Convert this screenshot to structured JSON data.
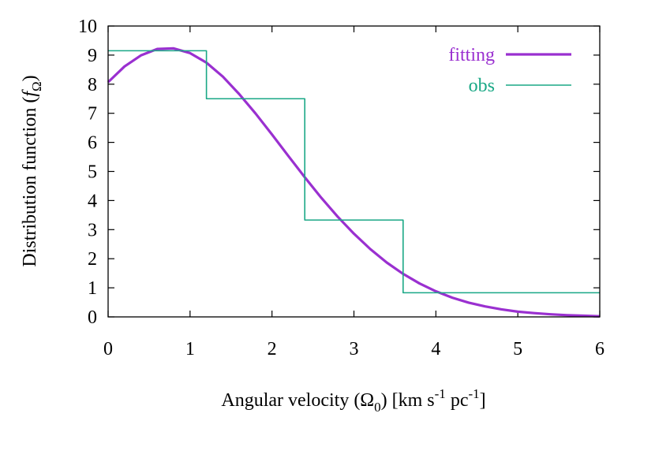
{
  "chart_data": {
    "type": "line",
    "xlabel": {
      "prefix": "Angular velocity (Ω",
      "sub": "0",
      "middle": ") [km s",
      "sup1": "-1",
      "middle2": " pc",
      "sup2": "-1",
      "suffix": "]"
    },
    "ylabel": {
      "prefix": "Distribution function (",
      "italic": "f",
      "sub": "Ω",
      "suffix": ")"
    },
    "xlim": [
      0,
      6
    ],
    "ylim": [
      0,
      10
    ],
    "xticks": [
      0,
      1,
      2,
      3,
      4,
      5,
      6
    ],
    "yticks": [
      0,
      1,
      2,
      3,
      4,
      5,
      6,
      7,
      8,
      9,
      10
    ],
    "grid": false,
    "legend_position": "top-right",
    "series": [
      {
        "name": "fitting",
        "kind": "curve",
        "color": "#9a30d0",
        "x": [
          0,
          0.2,
          0.4,
          0.6,
          0.8,
          1.0,
          1.2,
          1.4,
          1.6,
          1.8,
          2.0,
          2.2,
          2.4,
          2.6,
          2.8,
          3.0,
          3.2,
          3.4,
          3.6,
          3.8,
          4.0,
          4.2,
          4.4,
          4.6,
          4.8,
          5.0,
          5.2,
          5.4,
          5.6,
          5.8,
          6.0
        ],
        "y": [
          8.07,
          8.61,
          8.99,
          9.21,
          9.23,
          9.07,
          8.74,
          8.26,
          7.66,
          6.99,
          6.27,
          5.53,
          4.8,
          4.1,
          3.45,
          2.86,
          2.33,
          1.87,
          1.48,
          1.15,
          0.88,
          0.66,
          0.49,
          0.36,
          0.26,
          0.18,
          0.13,
          0.09,
          0.06,
          0.04,
          0.02
        ]
      },
      {
        "name": "obs",
        "kind": "step",
        "color": "#1aa886",
        "bin_edges": [
          0,
          1.2,
          2.4,
          3.6,
          6.0
        ],
        "values": [
          9.15,
          7.5,
          3.33,
          0.83
        ]
      }
    ]
  }
}
